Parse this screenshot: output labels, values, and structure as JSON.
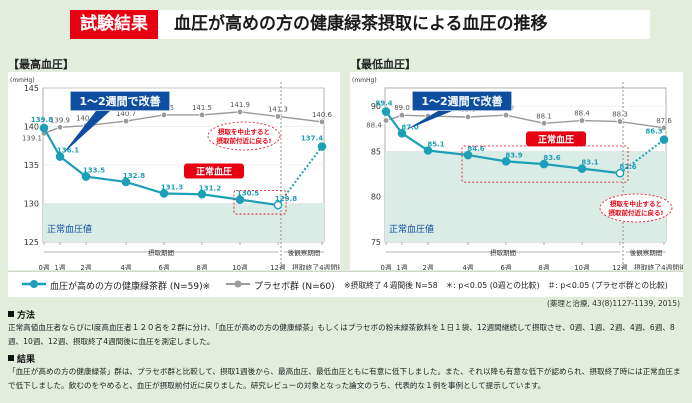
{
  "header": {
    "tag": "試験結果",
    "title": "血圧が高めの方の健康緑茶摂取による血圧の推移"
  },
  "charts": [
    {
      "label": "【最高血圧】",
      "unit": "(mmHg)",
      "y_ticks": [
        "145",
        "140",
        "135",
        "130",
        "125"
      ],
      "normal_zone_label": "正常血圧値",
      "callout": "1〜2週間で改善",
      "badge": "正常血圧",
      "note_line1": "摂取を中止すると",
      "note_line2": "摂取前付近に戻る!"
    },
    {
      "label": "【最低血圧】",
      "unit": "(mmHg)",
      "y_ticks": [
        "90",
        "85",
        "80",
        "75"
      ],
      "normal_zone_label": "正常血圧値",
      "callout": "1〜2週間で改善",
      "badge": "正常血圧",
      "note_line1": "摂取を中止すると",
      "note_line2": "摂取前付近に戻る!"
    }
  ],
  "x_axis": {
    "ticks": [
      "0週",
      "1週",
      "2週",
      "4週",
      "6週",
      "8週",
      "10週",
      "12週",
      "摂取終了4週間後"
    ],
    "period_intake": "摂取期間",
    "period_observe": "後観察期間"
  },
  "chart_data": [
    {
      "type": "line",
      "title": "【最高血圧】",
      "ylabel": "(mmHg)",
      "ylim": [
        125,
        145
      ],
      "x": [
        "0週",
        "1週",
        "2週",
        "4週",
        "6週",
        "8週",
        "10週",
        "12週",
        "摂取終了4週間後"
      ],
      "series": [
        {
          "name": "血圧が高めの方の健康緑茶群 (N=59)",
          "values": [
            139.8,
            136.1,
            133.5,
            132.8,
            131.3,
            131.2,
            130.5,
            129.8,
            137.4
          ]
        },
        {
          "name": "プラセボ群 (N=60)",
          "values": [
            139.1,
            139.9,
            140.1,
            140.7,
            141.5,
            141.5,
            141.9,
            141.3,
            140.6
          ]
        }
      ],
      "normal_range": [
        125,
        130
      ]
    },
    {
      "type": "line",
      "title": "【最低血圧】",
      "ylabel": "(mmHg)",
      "ylim": [
        75,
        92
      ],
      "x": [
        "0週",
        "1週",
        "2週",
        "4週",
        "6週",
        "8週",
        "10週",
        "12週",
        "摂取終了4週間後"
      ],
      "series": [
        {
          "name": "血圧が高めの方の健康緑茶群 (N=59)",
          "values": [
            89.4,
            87.0,
            85.1,
            84.6,
            83.9,
            83.6,
            83.1,
            82.6,
            86.3
          ]
        },
        {
          "name": "プラセボ群 (N=60)",
          "values": [
            88.4,
            89.0,
            88.9,
            88.8,
            89.0,
            88.1,
            88.4,
            88.3,
            87.6
          ]
        }
      ],
      "normal_range": [
        75,
        85
      ]
    }
  ],
  "legend": {
    "tea": "血圧が高めの方の健康緑茶群 (N=59)※",
    "placebo": "プラセボ群 (N=60)",
    "note": "※摂取終了４週間後 N=58　＊: p<0.05 (0週との比較)　＃: p<0.05 (プラセボ群との比較)"
  },
  "source": "(薬理と治療, 43(8)1127-1139, 2015)",
  "method": {
    "heading": "方法",
    "text": "正常高値血圧者ならびにⅠ度高血圧者１２０名を２群に分け、「血圧が高めの方の健康緑茶」もしくはプラセボの粉末緑茶飲料を１日１袋、12週間継続して摂取させ、0週、1週、2週、4週、6週、8週、10週、12週、摂取終了4週間後に血圧を測定しました。"
  },
  "result": {
    "heading": "結果",
    "text": "「血圧が高めの方の健康緑茶」群は、プラセボ群と比較して、摂取1週後から、最高血圧、最低血圧ともに有意に低下しました。また、それ以降も有意な低下が認められ、摂取終了時には正常血圧まで低下しました。飲むのをやめると、血圧が摂取前付近に戻りました。研究レビューの対象となった論文のうち、代表的な１例を事例として提示しています。"
  },
  "colors": {
    "tea": "#1e9fb8",
    "placebo": "#9a9a9a",
    "accent": "#e60012",
    "callout": "#0d4ea0",
    "normal": "#d9ece6"
  }
}
